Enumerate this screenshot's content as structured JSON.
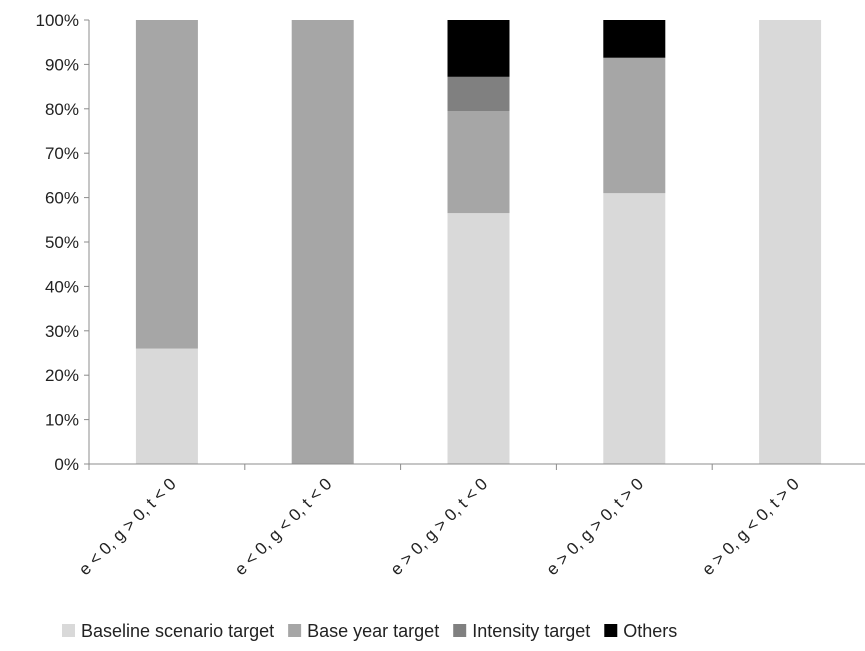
{
  "chart_data": {
    "type": "bar",
    "stacked": true,
    "percent": true,
    "categories": [
      "e < 0, g > 0, t < 0",
      "e < 0, g < 0, t < 0",
      "e > 0, g > 0, t < 0",
      "e > 0, g > 0, t > 0",
      "e > 0, g < 0, t > 0"
    ],
    "series": [
      {
        "name": "Baseline scenario target",
        "color": "#d9d9d9",
        "values": [
          26,
          0,
          56.5,
          61,
          100
        ]
      },
      {
        "name": "Base year target",
        "color": "#a6a6a6",
        "values": [
          74,
          100,
          23,
          30.5,
          0
        ]
      },
      {
        "name": "Intensity target",
        "color": "#808080",
        "values": [
          0,
          0,
          7.7,
          0,
          0
        ]
      },
      {
        "name": "Others",
        "color": "#000000",
        "values": [
          0,
          0,
          12.8,
          8.5,
          0
        ]
      }
    ],
    "ylim": [
      0,
      100
    ],
    "yticks": [
      "0%",
      "10%",
      "20%",
      "30%",
      "40%",
      "50%",
      "60%",
      "70%",
      "80%",
      "90%",
      "100%"
    ],
    "legend_position": "bottom",
    "grid": false
  }
}
